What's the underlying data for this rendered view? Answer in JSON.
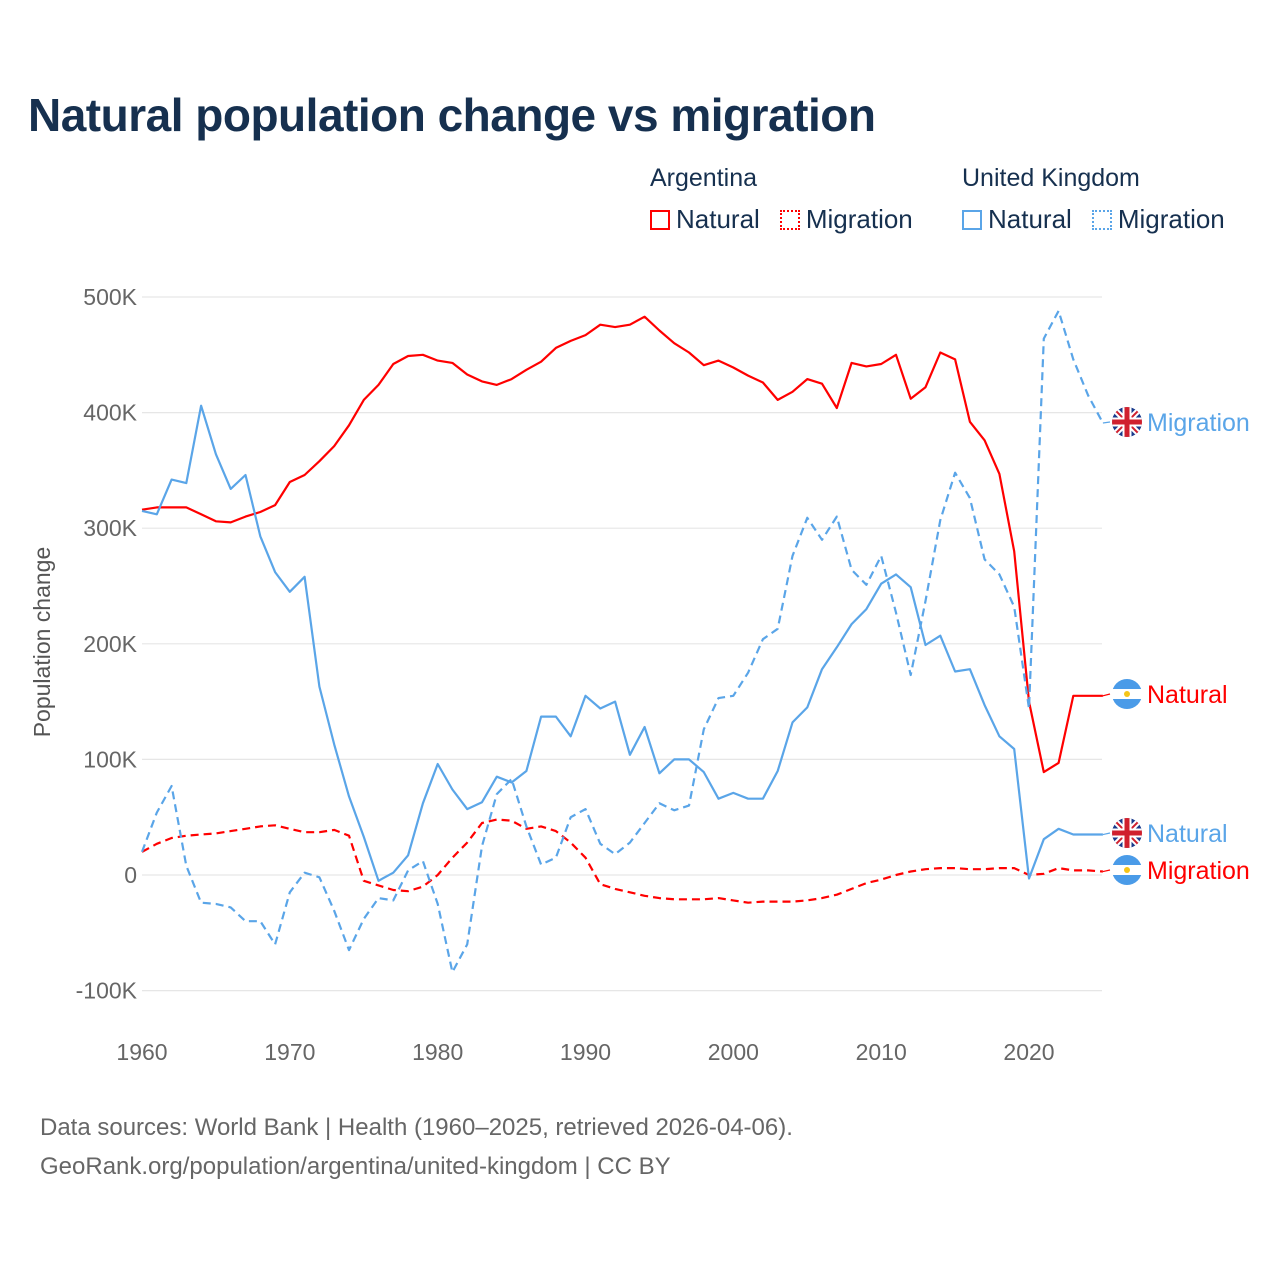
{
  "chart_data": {
    "type": "line",
    "title": "Natural population change vs migration",
    "xlabel": "",
    "ylabel": "Population change",
    "xlim": [
      1960,
      2025
    ],
    "ylim": [
      -100000,
      500000
    ],
    "grid": true,
    "legend_placement": "top-right",
    "x_ticks": [
      "1960",
      "1970",
      "1980",
      "1990",
      "2000",
      "2010",
      "2020"
    ],
    "y_ticks": [
      {
        "value": -100000,
        "label": "-100K"
      },
      {
        "value": 0,
        "label": "0"
      },
      {
        "value": 100000,
        "label": "100K"
      },
      {
        "value": 200000,
        "label": "200K"
      },
      {
        "value": 300000,
        "label": "300K"
      },
      {
        "value": 400000,
        "label": "400K"
      },
      {
        "value": 500000,
        "label": "500K"
      }
    ],
    "legend_groups": [
      {
        "country": "Argentina",
        "items": [
          "Natural",
          "Migration"
        ]
      },
      {
        "country": "United Kingdom",
        "items": [
          "Natural",
          "Migration"
        ]
      }
    ],
    "x_start": 1960,
    "series": [
      {
        "name": "Argentina Natural",
        "country": "Argentina",
        "kind": "Natural",
        "color": "#ff0000",
        "dashed": false,
        "end_label": "Natural",
        "flag": "argentina",
        "values_thousands": [
          316,
          318,
          318,
          318,
          312,
          306,
          305,
          310,
          314,
          320,
          340,
          346,
          358,
          371,
          389,
          411,
          424,
          442,
          449,
          450,
          445,
          443,
          433,
          427,
          424,
          429,
          437,
          444,
          456,
          462,
          467,
          476,
          474,
          476,
          483,
          471,
          460,
          452,
          441,
          445,
          439,
          432,
          426,
          411,
          418,
          429,
          425,
          404,
          443,
          440,
          442,
          450,
          412,
          422,
          452,
          446,
          392,
          376,
          347,
          280,
          150,
          89,
          97,
          155,
          155,
          155
        ]
      },
      {
        "name": "Argentina Migration",
        "country": "Argentina",
        "kind": "Migration",
        "color": "#ff0000",
        "dashed": true,
        "end_label": "Migration",
        "flag": "argentina",
        "values_thousands": [
          20,
          27,
          32,
          34,
          35,
          36,
          38,
          40,
          42,
          43,
          40,
          37,
          37,
          39,
          34,
          -5,
          -9,
          -13,
          -14,
          -10,
          0,
          15,
          28,
          45,
          48,
          47,
          40,
          42,
          38,
          28,
          15,
          -8,
          -12,
          -15,
          -18,
          -20,
          -21,
          -21,
          -21,
          -20,
          -22,
          -24,
          -23,
          -23,
          -23,
          -22,
          -20,
          -17,
          -12,
          -7,
          -4,
          0,
          3,
          5,
          6,
          6,
          5,
          5,
          6,
          6,
          0,
          1,
          6,
          4,
          4,
          3
        ]
      },
      {
        "name": "United Kingdom Natural",
        "country": "United Kingdom",
        "kind": "Natural",
        "color": "#5aa5e8",
        "dashed": false,
        "end_label": "Natural",
        "flag": "uk",
        "values_thousands": [
          315,
          312,
          342,
          339,
          406,
          364,
          334,
          346,
          293,
          262,
          245,
          258,
          163,
          113,
          68,
          33,
          -5,
          2,
          17,
          62,
          96,
          74,
          57,
          63,
          85,
          80,
          90,
          137,
          137,
          120,
          155,
          144,
          150,
          104,
          128,
          88,
          100,
          100,
          89,
          66,
          71,
          66,
          66,
          90,
          132,
          145,
          178,
          197,
          217,
          230,
          252,
          260,
          249,
          199,
          207,
          176,
          178,
          147,
          120,
          109,
          -3,
          31,
          40,
          35,
          35,
          35
        ]
      },
      {
        "name": "United Kingdom Migration",
        "country": "United Kingdom",
        "kind": "Migration",
        "color": "#5aa5e8",
        "dashed": true,
        "end_label": "Migration",
        "flag": "uk",
        "values_thousands": [
          20,
          54,
          77,
          8,
          -24,
          -25,
          -28,
          -40,
          -40,
          -60,
          -15,
          2,
          -2,
          -31,
          -65,
          -38,
          -20,
          -22,
          4,
          12,
          -25,
          -84,
          -60,
          25,
          70,
          83,
          42,
          9,
          15,
          50,
          57,
          27,
          18,
          28,
          45,
          62,
          56,
          60,
          126,
          153,
          155,
          175,
          204,
          213,
          276,
          309,
          290,
          310,
          264,
          251,
          276,
          227,
          173,
          237,
          307,
          348,
          326,
          273,
          260,
          232,
          144,
          464,
          488,
          446,
          415,
          391
        ]
      }
    ],
    "source_line1": "Data sources: World Bank | Health (1960–2025, retrieved 2026-04-06).",
    "source_line2": "GeoRank.org/population/argentina/united-kingdom | CC BY"
  }
}
